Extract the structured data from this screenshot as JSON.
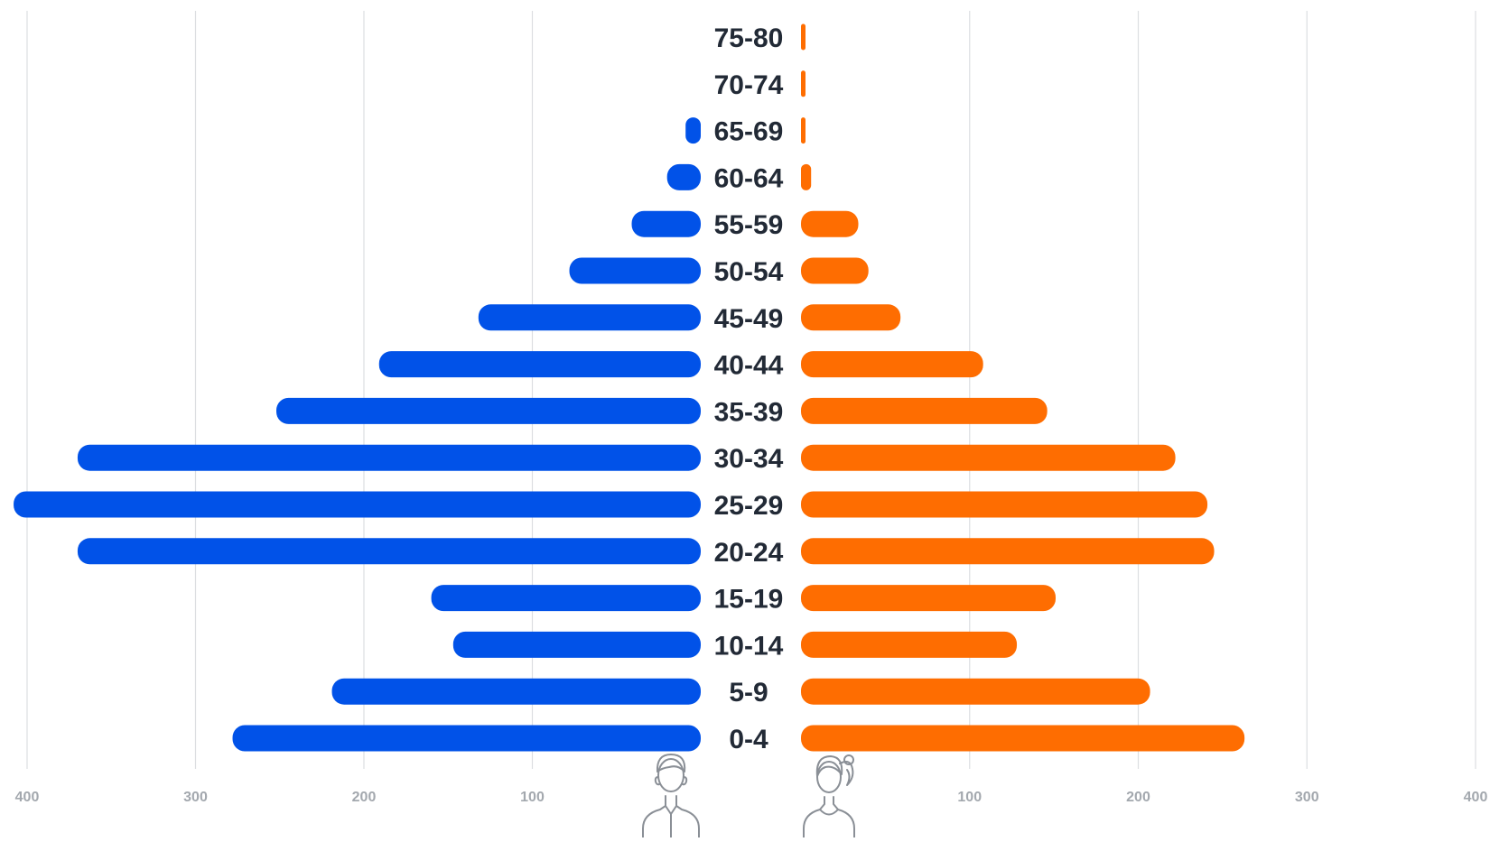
{
  "chart_data": {
    "type": "bar",
    "subtype": "population-pyramid",
    "orientation": "horizontal",
    "categories": [
      "75-80",
      "70-74",
      "65-69",
      "60-64",
      "55-59",
      "50-54",
      "45-49",
      "40-44",
      "35-39",
      "30-34",
      "25-29",
      "20-24",
      "15-19",
      "10-14",
      "5-9",
      "0-4"
    ],
    "series": [
      {
        "icon": "male-person-icon",
        "side": "left",
        "color": "#0152e8",
        "values": [
          0,
          0,
          9,
          20,
          41,
          78,
          132,
          191,
          252,
          370,
          408,
          370,
          160,
          147,
          219,
          278
        ]
      },
      {
        "icon": "female-person-icon",
        "side": "right",
        "color": "#fe6d01",
        "values": [
          2,
          2,
          2,
          6,
          34,
          40,
          59,
          108,
          146,
          222,
          241,
          245,
          151,
          128,
          207,
          263
        ]
      }
    ],
    "xlim": [
      0,
      400
    ],
    "ticks": [
      "400",
      "300",
      "200",
      "100",
      "100",
      "200",
      "300",
      "400"
    ],
    "grid": true,
    "legend": "icons below the bars"
  },
  "colors": {
    "male": "#0152e8",
    "female": "#fe6d01",
    "grid": "#dcdee1",
    "label": "#222a36",
    "tick": "#a3a8ae"
  }
}
